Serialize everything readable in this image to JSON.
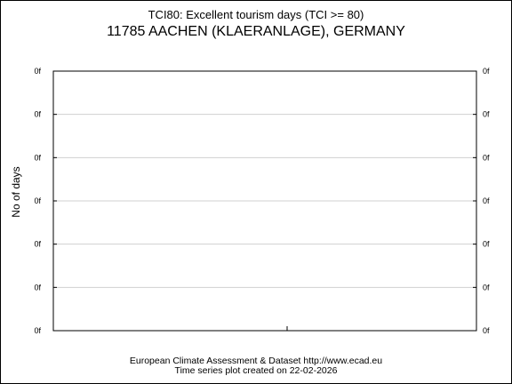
{
  "chart_data": {
    "type": "line",
    "title": "TCI80: Excellent tourism days (TCI >= 80)",
    "subtitle": "11785 AACHEN (KLAERANLAGE), GERMANY",
    "xlabel": "",
    "ylabel": "No of days",
    "y_tick_labels": [
      "0f",
      "0f",
      "0f",
      "0f",
      "0f",
      "0f",
      "0f"
    ],
    "grid": true,
    "series": []
  },
  "footer": {
    "line1": "European Climate Assessment & Dataset  http://www.ecad.eu",
    "line2": "Time series plot created on 22-02-2026"
  },
  "colors": {
    "grid": "#d0d0d0",
    "axis": "#000000"
  }
}
